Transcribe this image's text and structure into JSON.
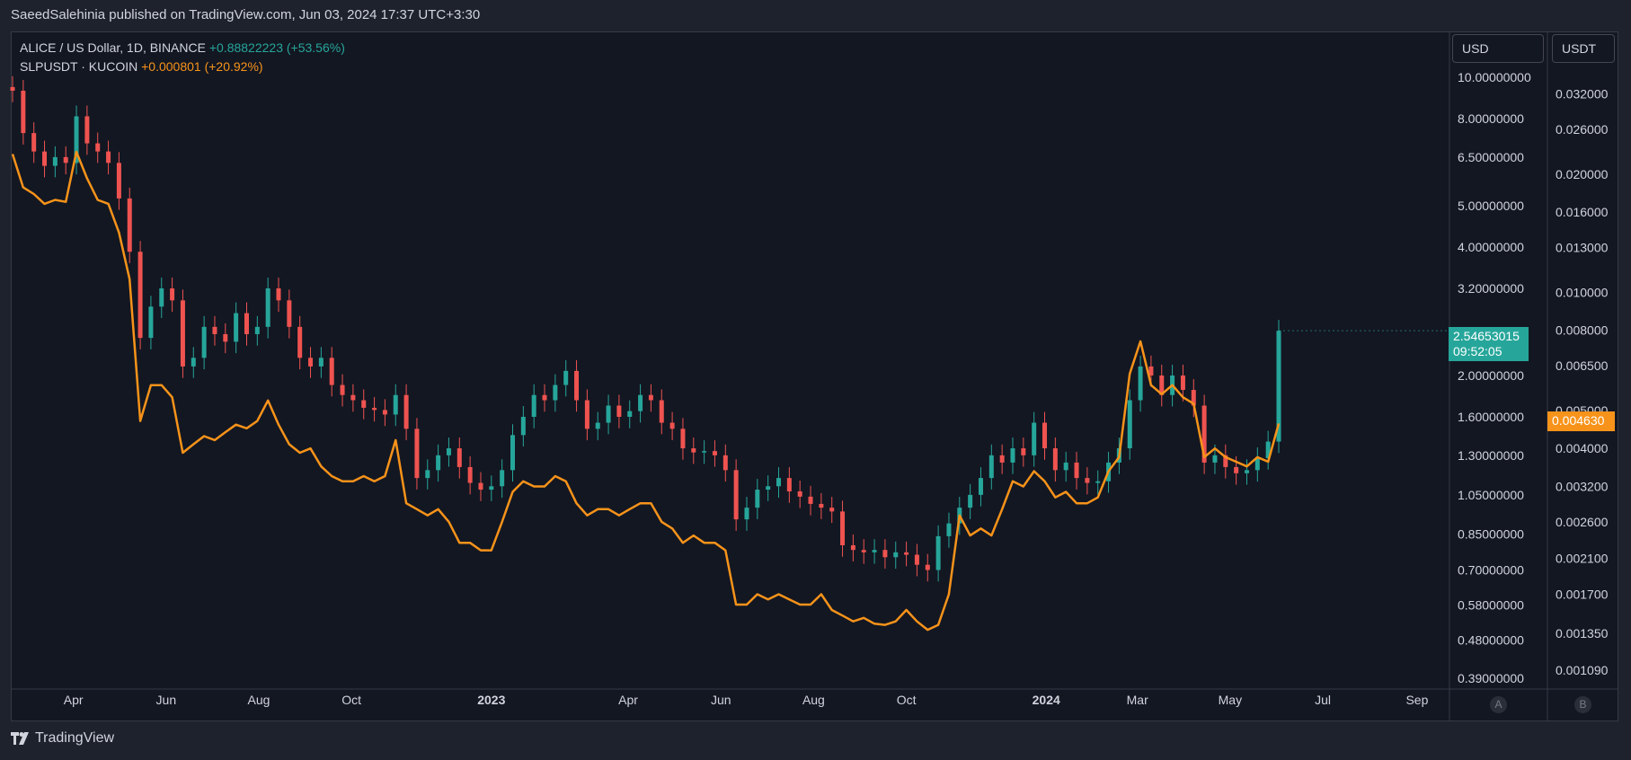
{
  "header": {
    "publisher_line": "SaeedSalehinia published on TradingView.com, Jun 03, 2024 17:37 UTC+3:30"
  },
  "legend": {
    "series1": {
      "name": "ALICE / US Dollar, 1D, BINANCE",
      "change": "+0.88822223 (+53.56%)"
    },
    "series2": {
      "name": "SLPUSDT · KUCOIN",
      "change": "+0.000801 (+20.92%)"
    }
  },
  "scales": {
    "left_unit": "USD",
    "right_unit": "USDT",
    "left_button": "A",
    "right_button": "B"
  },
  "price_tags": {
    "alice_price": "2.54653015",
    "alice_countdown": "09:52:05",
    "slp_price": "0.004630"
  },
  "footer": {
    "brand": "TradingView"
  },
  "colors": {
    "background": "#131722",
    "panel": "#1e222d",
    "up": "#26a69a",
    "down": "#ef5350",
    "slp_line": "#f7931a",
    "grid_text": "#d1d4dc",
    "axis_border": "#363a45"
  },
  "chart_data": {
    "type": "line",
    "log_scale": true,
    "grid": false,
    "x_axis": {
      "ticks": [
        "Apr",
        "Jun",
        "Aug",
        "Oct",
        "2023",
        "Apr",
        "Jun",
        "Aug",
        "Oct",
        "2024",
        "Mar",
        "May",
        "Jul",
        "Sep"
      ],
      "tick_dates": [
        "2022-04-01",
        "2022-06-01",
        "2022-08-01",
        "2022-10-01",
        "2023-01-01",
        "2023-04-01",
        "2023-06-01",
        "2023-08-01",
        "2023-10-01",
        "2024-01-01",
        "2024-03-01",
        "2024-05-01",
        "2024-07-01",
        "2024-09-01"
      ],
      "bold_ticks": [
        "2023",
        "2024"
      ]
    },
    "y_axis_usd": {
      "unit": "USD",
      "ticks": [
        "10.00000000",
        "8.00000000",
        "6.50000000",
        "5.00000000",
        "4.00000000",
        "3.20000000",
        "2.00000000",
        "1.60000000",
        "1.30000000",
        "1.05000000",
        "0.85000000",
        "0.70000000",
        "0.58000000",
        "0.48000000",
        "0.39000000"
      ],
      "range": [
        0.37,
        12.5
      ]
    },
    "y_axis_usdt": {
      "unit": "USDT",
      "ticks": [
        "0.032000",
        "0.026000",
        "0.020000",
        "0.016000",
        "0.013000",
        "0.010000",
        "0.008000",
        "0.006500",
        "0.005000",
        "0.004000",
        "0.003200",
        "0.002600",
        "0.002100",
        "0.001700",
        "0.001350",
        "0.001090"
      ],
      "range": [
        0.00098,
        0.045
      ]
    },
    "series": [
      {
        "name": "ALICE / US Dollar, 1D, BINANCE",
        "axis": "usd",
        "style": "candles",
        "points": [
          [
            "2022-02-20",
            9.3
          ],
          [
            "2022-02-27",
            7.4
          ],
          [
            "2022-03-06",
            6.7
          ],
          [
            "2022-03-13",
            6.2
          ],
          [
            "2022-03-20",
            6.5
          ],
          [
            "2022-03-27",
            6.3
          ],
          [
            "2022-04-03",
            8.1
          ],
          [
            "2022-04-10",
            7.0
          ],
          [
            "2022-04-17",
            6.7
          ],
          [
            "2022-04-24",
            6.3
          ],
          [
            "2022-05-01",
            5.2
          ],
          [
            "2022-05-08",
            3.9
          ],
          [
            "2022-05-15",
            2.45
          ],
          [
            "2022-05-22",
            2.9
          ],
          [
            "2022-05-29",
            3.2
          ],
          [
            "2022-06-05",
            3.0
          ],
          [
            "2022-06-12",
            2.1
          ],
          [
            "2022-06-19",
            2.2
          ],
          [
            "2022-06-26",
            2.6
          ],
          [
            "2022-07-03",
            2.5
          ],
          [
            "2022-07-10",
            2.4
          ],
          [
            "2022-07-17",
            2.8
          ],
          [
            "2022-07-24",
            2.5
          ],
          [
            "2022-07-31",
            2.6
          ],
          [
            "2022-08-07",
            3.2
          ],
          [
            "2022-08-14",
            3.0
          ],
          [
            "2022-08-21",
            2.6
          ],
          [
            "2022-08-28",
            2.2
          ],
          [
            "2022-09-04",
            2.1
          ],
          [
            "2022-09-11",
            2.2
          ],
          [
            "2022-09-18",
            1.9
          ],
          [
            "2022-09-25",
            1.8
          ],
          [
            "2022-10-02",
            1.75
          ],
          [
            "2022-10-09",
            1.68
          ],
          [
            "2022-10-16",
            1.66
          ],
          [
            "2022-10-23",
            1.62
          ],
          [
            "2022-10-30",
            1.8
          ],
          [
            "2022-11-06",
            1.5
          ],
          [
            "2022-11-13",
            1.15
          ],
          [
            "2022-11-20",
            1.2
          ],
          [
            "2022-11-27",
            1.3
          ],
          [
            "2022-12-04",
            1.35
          ],
          [
            "2022-12-11",
            1.22
          ],
          [
            "2022-12-18",
            1.12
          ],
          [
            "2022-12-25",
            1.08
          ],
          [
            "2023-01-01",
            1.1
          ],
          [
            "2023-01-08",
            1.2
          ],
          [
            "2023-01-15",
            1.45
          ],
          [
            "2023-01-22",
            1.6
          ],
          [
            "2023-01-29",
            1.8
          ],
          [
            "2023-02-05",
            1.75
          ],
          [
            "2023-02-12",
            1.9
          ],
          [
            "2023-02-19",
            2.05
          ],
          [
            "2023-02-26",
            1.75
          ],
          [
            "2023-03-05",
            1.5
          ],
          [
            "2023-03-12",
            1.55
          ],
          [
            "2023-03-19",
            1.7
          ],
          [
            "2023-03-26",
            1.6
          ],
          [
            "2023-04-02",
            1.65
          ],
          [
            "2023-04-09",
            1.8
          ],
          [
            "2023-04-16",
            1.75
          ],
          [
            "2023-04-23",
            1.55
          ],
          [
            "2023-04-30",
            1.5
          ],
          [
            "2023-05-07",
            1.35
          ],
          [
            "2023-05-14",
            1.32
          ],
          [
            "2023-05-21",
            1.33
          ],
          [
            "2023-05-28",
            1.3
          ],
          [
            "2023-06-04",
            1.2
          ],
          [
            "2023-06-11",
            0.92
          ],
          [
            "2023-06-18",
            0.98
          ],
          [
            "2023-06-25",
            1.08
          ],
          [
            "2023-07-02",
            1.1
          ],
          [
            "2023-07-09",
            1.15
          ],
          [
            "2023-07-16",
            1.07
          ],
          [
            "2023-07-23",
            1.04
          ],
          [
            "2023-07-30",
            1.0
          ],
          [
            "2023-08-06",
            0.98
          ],
          [
            "2023-08-13",
            0.96
          ],
          [
            "2023-08-20",
            0.8
          ],
          [
            "2023-08-27",
            0.78
          ],
          [
            "2023-09-03",
            0.77
          ],
          [
            "2023-09-10",
            0.78
          ],
          [
            "2023-09-17",
            0.75
          ],
          [
            "2023-09-24",
            0.77
          ],
          [
            "2023-10-01",
            0.76
          ],
          [
            "2023-10-08",
            0.72
          ],
          [
            "2023-10-15",
            0.7
          ],
          [
            "2023-10-22",
            0.84
          ],
          [
            "2023-10-29",
            0.9
          ],
          [
            "2023-11-05",
            0.98
          ],
          [
            "2023-11-12",
            1.05
          ],
          [
            "2023-11-19",
            1.15
          ],
          [
            "2023-11-26",
            1.3
          ],
          [
            "2023-12-03",
            1.25
          ],
          [
            "2023-12-10",
            1.35
          ],
          [
            "2023-12-17",
            1.3
          ],
          [
            "2023-12-24",
            1.55
          ],
          [
            "2023-12-31",
            1.35
          ],
          [
            "2024-01-07",
            1.2
          ],
          [
            "2024-01-14",
            1.25
          ],
          [
            "2024-01-21",
            1.15
          ],
          [
            "2024-01-28",
            1.12
          ],
          [
            "2024-02-04",
            1.13
          ],
          [
            "2024-02-11",
            1.25
          ],
          [
            "2024-02-18",
            1.35
          ],
          [
            "2024-02-25",
            1.75
          ],
          [
            "2024-03-03",
            2.1
          ],
          [
            "2024-03-10",
            2.0
          ],
          [
            "2024-03-17",
            1.8
          ],
          [
            "2024-03-24",
            2.0
          ],
          [
            "2024-03-31",
            1.85
          ],
          [
            "2024-04-07",
            1.7
          ],
          [
            "2024-04-14",
            1.25
          ],
          [
            "2024-04-21",
            1.3
          ],
          [
            "2024-04-28",
            1.22
          ],
          [
            "2024-05-05",
            1.18
          ],
          [
            "2024-05-12",
            1.2
          ],
          [
            "2024-05-19",
            1.28
          ],
          [
            "2024-05-26",
            1.4
          ],
          [
            "2024-06-02",
            2.5465
          ]
        ]
      },
      {
        "name": "SLPUSDT · KUCOIN",
        "axis": "usdt",
        "style": "line",
        "points": [
          [
            "2022-02-20",
            0.0225
          ],
          [
            "2022-02-27",
            0.0185
          ],
          [
            "2022-03-06",
            0.0178
          ],
          [
            "2022-03-13",
            0.0168
          ],
          [
            "2022-03-20",
            0.0172
          ],
          [
            "2022-03-27",
            0.017
          ],
          [
            "2022-04-03",
            0.0228
          ],
          [
            "2022-04-10",
            0.0195
          ],
          [
            "2022-04-17",
            0.0172
          ],
          [
            "2022-04-24",
            0.0168
          ],
          [
            "2022-05-01",
            0.0142
          ],
          [
            "2022-05-08",
            0.0108
          ],
          [
            "2022-05-15",
            0.0047
          ],
          [
            "2022-05-22",
            0.0058
          ],
          [
            "2022-05-29",
            0.0058
          ],
          [
            "2022-06-05",
            0.0054
          ],
          [
            "2022-06-12",
            0.0039
          ],
          [
            "2022-06-19",
            0.0041
          ],
          [
            "2022-06-26",
            0.0043
          ],
          [
            "2022-07-03",
            0.0042
          ],
          [
            "2022-07-10",
            0.0044
          ],
          [
            "2022-07-17",
            0.0046
          ],
          [
            "2022-07-24",
            0.0045
          ],
          [
            "2022-07-31",
            0.0047
          ],
          [
            "2022-08-07",
            0.0053
          ],
          [
            "2022-08-14",
            0.0046
          ],
          [
            "2022-08-21",
            0.0041
          ],
          [
            "2022-08-28",
            0.0039
          ],
          [
            "2022-09-04",
            0.004
          ],
          [
            "2022-09-11",
            0.0036
          ],
          [
            "2022-09-18",
            0.0034
          ],
          [
            "2022-09-25",
            0.0033
          ],
          [
            "2022-10-02",
            0.0033
          ],
          [
            "2022-10-09",
            0.0034
          ],
          [
            "2022-10-16",
            0.0033
          ],
          [
            "2022-10-23",
            0.0034
          ],
          [
            "2022-10-30",
            0.0042
          ],
          [
            "2022-11-06",
            0.0029
          ],
          [
            "2022-11-13",
            0.0028
          ],
          [
            "2022-11-20",
            0.0027
          ],
          [
            "2022-11-27",
            0.0028
          ],
          [
            "2022-12-04",
            0.0026
          ],
          [
            "2022-12-11",
            0.0023
          ],
          [
            "2022-12-18",
            0.0023
          ],
          [
            "2022-12-25",
            0.0022
          ],
          [
            "2023-01-01",
            0.0022
          ],
          [
            "2023-01-08",
            0.0026
          ],
          [
            "2023-01-15",
            0.0031
          ],
          [
            "2023-01-22",
            0.0033
          ],
          [
            "2023-01-29",
            0.0032
          ],
          [
            "2023-02-05",
            0.0032
          ],
          [
            "2023-02-12",
            0.0034
          ],
          [
            "2023-02-19",
            0.0033
          ],
          [
            "2023-02-26",
            0.0029
          ],
          [
            "2023-03-05",
            0.0027
          ],
          [
            "2023-03-12",
            0.0028
          ],
          [
            "2023-03-19",
            0.0028
          ],
          [
            "2023-03-26",
            0.0027
          ],
          [
            "2023-04-02",
            0.0028
          ],
          [
            "2023-04-09",
            0.0029
          ],
          [
            "2023-04-16",
            0.0029
          ],
          [
            "2023-04-23",
            0.0026
          ],
          [
            "2023-04-30",
            0.0025
          ],
          [
            "2023-05-07",
            0.0023
          ],
          [
            "2023-05-14",
            0.0024
          ],
          [
            "2023-05-21",
            0.0023
          ],
          [
            "2023-05-28",
            0.0023
          ],
          [
            "2023-06-04",
            0.0022
          ],
          [
            "2023-06-11",
            0.0016
          ],
          [
            "2023-06-18",
            0.0016
          ],
          [
            "2023-06-25",
            0.0017
          ],
          [
            "2023-07-02",
            0.00165
          ],
          [
            "2023-07-09",
            0.0017
          ],
          [
            "2023-07-16",
            0.00165
          ],
          [
            "2023-07-23",
            0.0016
          ],
          [
            "2023-07-30",
            0.0016
          ],
          [
            "2023-08-06",
            0.0017
          ],
          [
            "2023-08-13",
            0.00155
          ],
          [
            "2023-08-20",
            0.0015
          ],
          [
            "2023-08-27",
            0.00145
          ],
          [
            "2023-09-03",
            0.00148
          ],
          [
            "2023-09-10",
            0.00143
          ],
          [
            "2023-09-17",
            0.00142
          ],
          [
            "2023-09-24",
            0.00145
          ],
          [
            "2023-10-01",
            0.00155
          ],
          [
            "2023-10-08",
            0.00145
          ],
          [
            "2023-10-15",
            0.00138
          ],
          [
            "2023-10-22",
            0.00142
          ],
          [
            "2023-10-29",
            0.0017
          ],
          [
            "2023-11-05",
            0.0027
          ],
          [
            "2023-11-12",
            0.0024
          ],
          [
            "2023-11-19",
            0.0025
          ],
          [
            "2023-11-26",
            0.0024
          ],
          [
            "2023-12-03",
            0.0028
          ],
          [
            "2023-12-10",
            0.0033
          ],
          [
            "2023-12-17",
            0.0032
          ],
          [
            "2023-12-24",
            0.0035
          ],
          [
            "2023-12-31",
            0.0033
          ],
          [
            "2024-01-07",
            0.003
          ],
          [
            "2024-01-14",
            0.0031
          ],
          [
            "2024-01-21",
            0.0029
          ],
          [
            "2024-01-28",
            0.0029
          ],
          [
            "2024-02-04",
            0.003
          ],
          [
            "2024-02-11",
            0.0035
          ],
          [
            "2024-02-18",
            0.0038
          ],
          [
            "2024-02-25",
            0.0062
          ],
          [
            "2024-03-03",
            0.0075
          ],
          [
            "2024-03-10",
            0.0058
          ],
          [
            "2024-03-17",
            0.0055
          ],
          [
            "2024-03-24",
            0.0058
          ],
          [
            "2024-03-31",
            0.0054
          ],
          [
            "2024-04-07",
            0.0052
          ],
          [
            "2024-04-14",
            0.0038
          ],
          [
            "2024-04-21",
            0.004
          ],
          [
            "2024-04-28",
            0.0038
          ],
          [
            "2024-05-05",
            0.0037
          ],
          [
            "2024-05-12",
            0.0036
          ],
          [
            "2024-05-19",
            0.0038
          ],
          [
            "2024-05-26",
            0.0037
          ],
          [
            "2024-06-02",
            0.00463
          ]
        ]
      }
    ]
  }
}
